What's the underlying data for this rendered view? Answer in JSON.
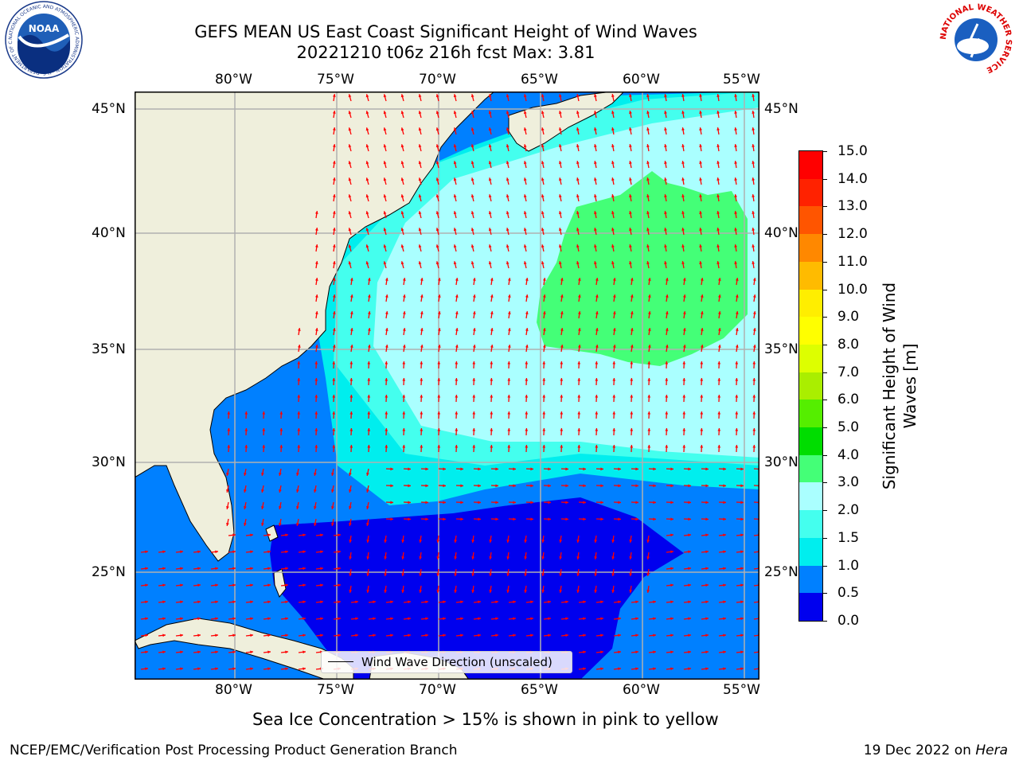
{
  "header": {
    "title_line1": "GEFS MEAN US East Coast Significant Height of Wind Waves",
    "title_line2": "20221210 t06z 216h fcst   Max: 3.81"
  },
  "logos": {
    "left_name": "NOAA",
    "left_ring_text": "NATIONAL OCEANIC AND ATMOSPHERIC ADMINISTRATION · U.S. DEPARTMENT OF COMMERCE",
    "right_ring_text": "NATIONAL WEATHER SERVICE"
  },
  "map": {
    "lon_labels": [
      "80°W",
      "75°W",
      "70°W",
      "65°W",
      "60°W",
      "55°W"
    ],
    "lat_labels": [
      "45°N",
      "40°N",
      "35°N",
      "30°N",
      "25°N"
    ],
    "legend_label": "Wind Wave Direction (unscaled)",
    "colors": {
      "land": "#efefdc",
      "border": "#000000",
      "grid": "#b0b0b0",
      "arrow": "#ff0000"
    }
  },
  "colorbar": {
    "label_line1": "Significant Height of Wind",
    "label_line2": "Waves [m]",
    "ticks": [
      "0.0",
      "0.5",
      "1.0",
      "1.5",
      "2.0",
      "3.0",
      "4.0",
      "5.0",
      "6.0",
      "7.0",
      "8.0",
      "9.0",
      "10.0",
      "11.0",
      "12.0",
      "13.0",
      "14.0",
      "15.0"
    ],
    "colors": [
      "#0000ee",
      "#0080ff",
      "#00eeee",
      "#44ffee",
      "#aaffff",
      "#44ff77",
      "#00dd00",
      "#55ee00",
      "#aaee00",
      "#ddff00",
      "#ffff00",
      "#ffee00",
      "#ffbb00",
      "#ff8800",
      "#ff5500",
      "#ff2200",
      "#ff0000"
    ]
  },
  "footer": {
    "sea_ice_note": "Sea Ice Concentration > 15% is shown in pink to yellow",
    "branch": "NCEP/EMC/Verification Post Processing Product Generation Branch",
    "date_text": "19 Dec 2022 on ",
    "machine": "Hera"
  }
}
